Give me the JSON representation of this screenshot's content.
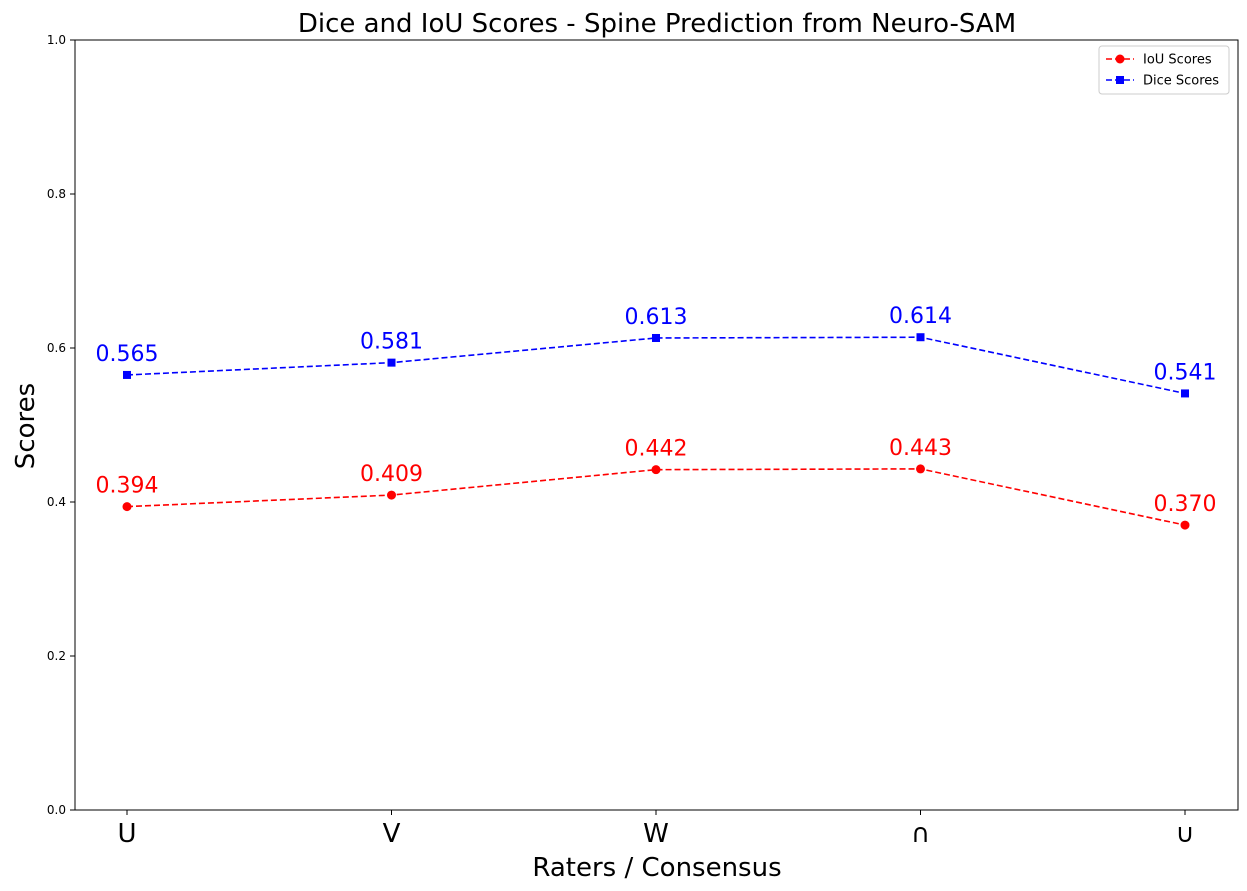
{
  "chart_data": {
    "type": "line",
    "title": "Dice and IoU Scores - Spine Prediction from Neuro-SAM",
    "xlabel": "Raters / Consensus",
    "ylabel": "Scores",
    "categories": [
      "U",
      "V",
      "W",
      "∩",
      "∪"
    ],
    "ylim": [
      0,
      1
    ],
    "yticks": [
      0.0,
      0.2,
      0.4,
      0.6,
      0.8,
      1.0
    ],
    "ytick_labels": [
      "0.0",
      "0.2",
      "0.4",
      "0.6",
      "0.8",
      "1.0"
    ],
    "grid": false,
    "legend_position": "top-right",
    "series": [
      {
        "name": "IoU Scores",
        "color": "#ff0000",
        "marker": "circle",
        "linestyle": "dashed",
        "values": [
          0.394,
          0.409,
          0.442,
          0.443,
          0.37
        ],
        "value_labels": [
          "0.394",
          "0.409",
          "0.442",
          "0.443",
          "0.370"
        ]
      },
      {
        "name": "Dice Scores",
        "color": "#0000ff",
        "marker": "square",
        "linestyle": "dashed",
        "values": [
          0.565,
          0.581,
          0.613,
          0.614,
          0.541
        ],
        "value_labels": [
          "0.565",
          "0.581",
          "0.613",
          "0.614",
          "0.541"
        ]
      }
    ]
  }
}
